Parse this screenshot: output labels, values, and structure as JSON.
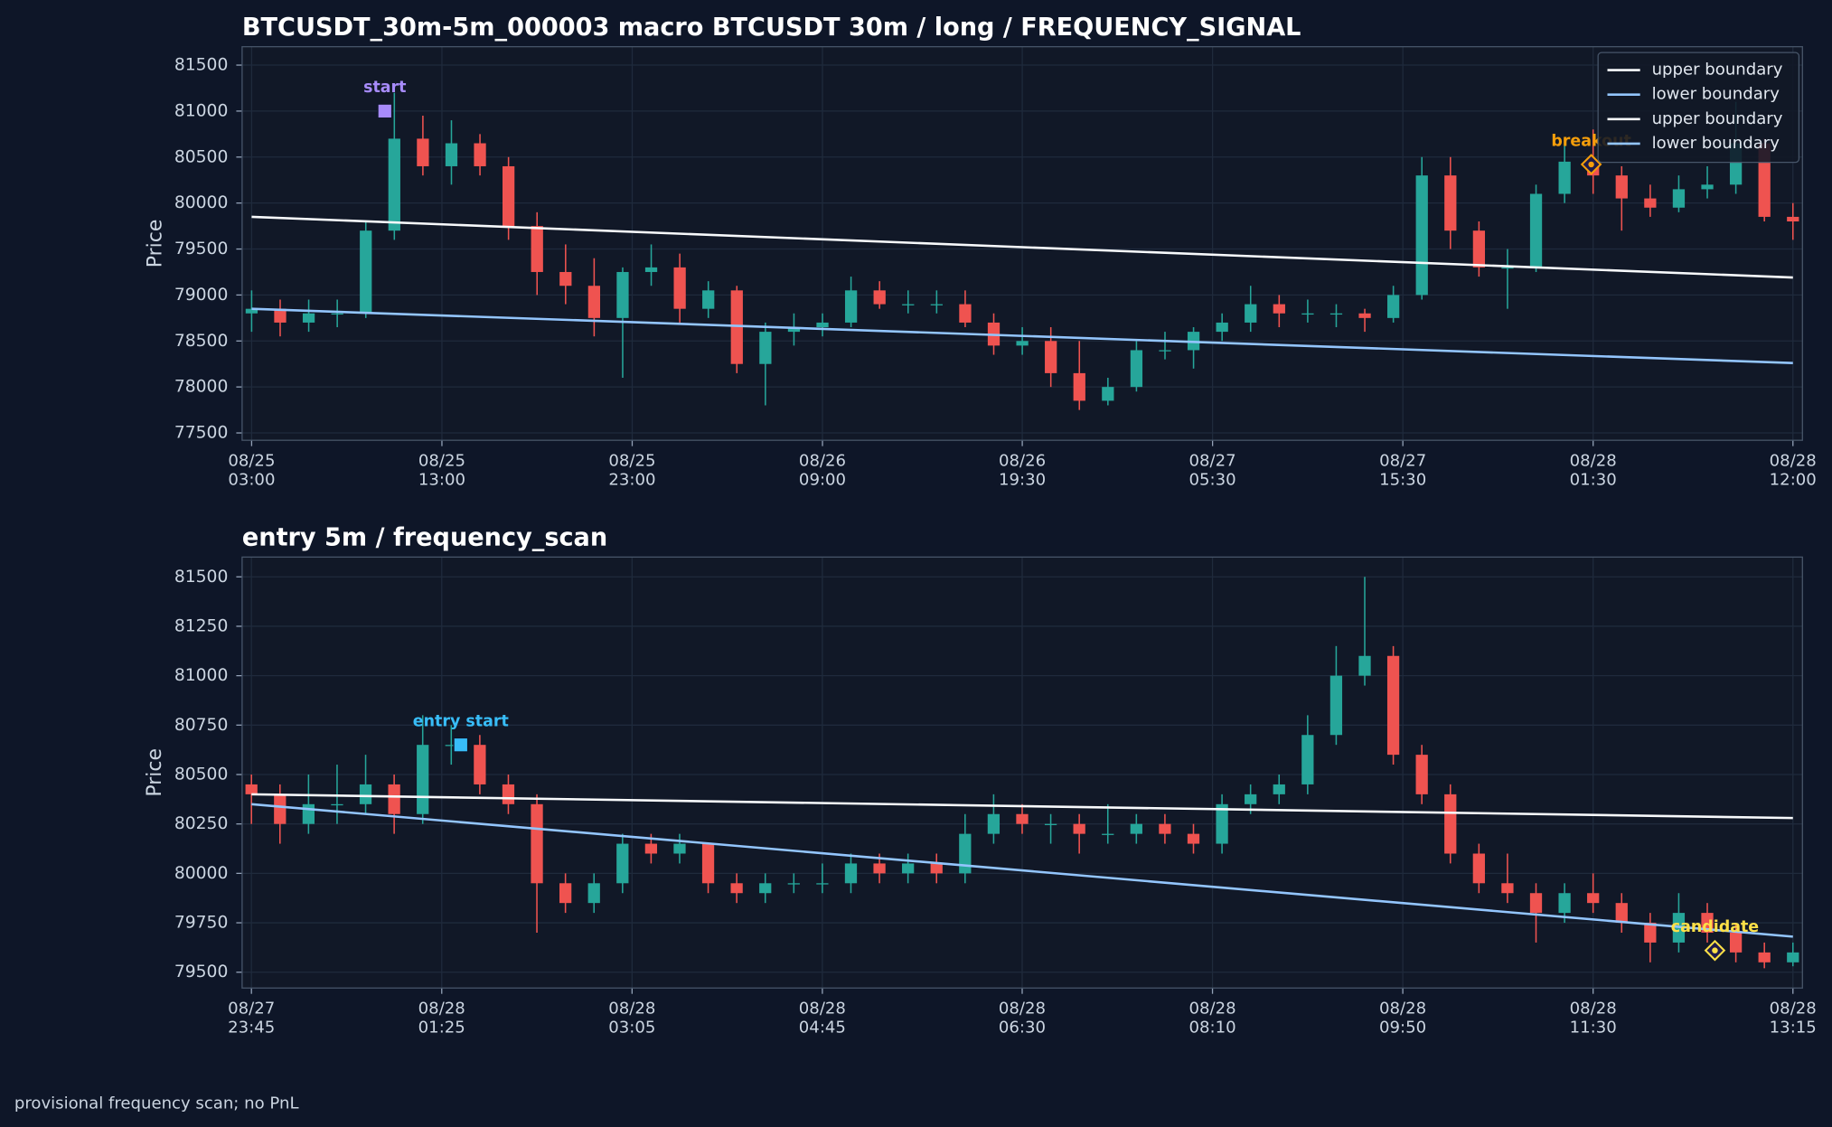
{
  "chart_data": [
    {
      "type": "candlestick",
      "title": "BTCUSDT_30m-5m_000003 macro BTCUSDT 30m / long / FREQUENCY_SIGNAL",
      "ylabel": "Price",
      "x": [
        0,
        1.5,
        3,
        4.5,
        6,
        7.5,
        9,
        10.5,
        12,
        13.5,
        15,
        16.5,
        18,
        19.5,
        21,
        22.5,
        24,
        25.5,
        27,
        28.5,
        30,
        31.5,
        33,
        34.5,
        36,
        37.5,
        39,
        40.5,
        42,
        43.5,
        45,
        46.5,
        48,
        49.5,
        51,
        52.5,
        54,
        55.5,
        57,
        58.5,
        60,
        61.5,
        63,
        64.5,
        66,
        67.5,
        69,
        70.5,
        72,
        73.5,
        75,
        76.5,
        78,
        79.5,
        81
      ],
      "open": [
        78800,
        78850,
        78700,
        78800,
        78800,
        79700,
        80700,
        80400,
        80650,
        80400,
        79750,
        79250,
        79100,
        78750,
        79250,
        79300,
        78850,
        79050,
        78250,
        78600,
        78650,
        78700,
        79050,
        78900,
        78900,
        78900,
        78700,
        78450,
        78500,
        78150,
        77850,
        78000,
        78400,
        78400,
        78600,
        78700,
        78900,
        78800,
        78800,
        78800,
        78750,
        79000,
        80300,
        79700,
        79300,
        79300,
        80100,
        80450,
        80300,
        80050,
        79950,
        80150,
        80200,
        80650,
        79850
      ],
      "high": [
        79050,
        78950,
        78950,
        78950,
        79800,
        81200,
        80950,
        80900,
        80750,
        80500,
        79900,
        79550,
        79400,
        79300,
        79550,
        79450,
        79150,
        79100,
        78700,
        78800,
        78800,
        79200,
        79150,
        79050,
        79050,
        79050,
        78800,
        78650,
        78650,
        78500,
        78100,
        78500,
        78600,
        78650,
        78800,
        79100,
        79000,
        78950,
        78900,
        78850,
        79100,
        80500,
        80500,
        79800,
        79500,
        80200,
        80700,
        80800,
        80400,
        80200,
        80300,
        80400,
        81100,
        80700,
        80000
      ],
      "low": [
        78600,
        78550,
        78600,
        78650,
        78750,
        79600,
        80300,
        80200,
        80300,
        79600,
        79000,
        78900,
        78550,
        78100,
        79100,
        78700,
        78750,
        78150,
        77800,
        78450,
        78550,
        78650,
        78850,
        78800,
        78800,
        78650,
        78350,
        78350,
        78000,
        77750,
        77800,
        77950,
        78300,
        78200,
        78500,
        78600,
        78650,
        78700,
        78650,
        78600,
        78700,
        78950,
        79500,
        79200,
        78850,
        79250,
        80000,
        80100,
        79700,
        79850,
        79900,
        80050,
        80100,
        79800,
        79600
      ],
      "close": [
        78850,
        78700,
        78800,
        78800,
        79700,
        80700,
        80400,
        80650,
        80400,
        79750,
        79250,
        79100,
        78750,
        79250,
        79300,
        78850,
        79050,
        78250,
        78600,
        78650,
        78700,
        79050,
        78900,
        78900,
        78900,
        78700,
        78450,
        78500,
        78150,
        77850,
        78000,
        78400,
        78400,
        78600,
        78700,
        78900,
        78800,
        78800,
        78800,
        78750,
        79000,
        80300,
        79700,
        79300,
        79300,
        80100,
        80450,
        80300,
        80050,
        79950,
        80150,
        80200,
        80650,
        79850,
        79800
      ],
      "up_color": "#26a69a",
      "down_color": "#ef5350",
      "series": [
        {
          "name": "upper boundary",
          "color": "#f8fafc",
          "x": [
            0,
            81
          ],
          "values": [
            79850,
            79190
          ]
        },
        {
          "name": "lower boundary",
          "color": "#93c5fd",
          "x": [
            0,
            81
          ],
          "values": [
            78850,
            78260
          ]
        }
      ],
      "markers": [
        {
          "label": "start",
          "x": 7,
          "y": 81000,
          "color": "#a78bfa",
          "shape": "square"
        },
        {
          "label": "breakout",
          "x": 70.4,
          "y": 80420,
          "color": "#f59e0b",
          "shape": "diamond"
        }
      ],
      "xlim": [
        -0.5,
        81.5
      ],
      "ylim": [
        77420,
        81700
      ],
      "xticks": [
        {
          "value": 0,
          "label": "08/25\n03:00"
        },
        {
          "value": 10,
          "label": "08/25\n13:00"
        },
        {
          "value": 20,
          "label": "08/25\n23:00"
        },
        {
          "value": 30,
          "label": "08/26\n09:00"
        },
        {
          "value": 40.5,
          "label": "08/26\n19:30"
        },
        {
          "value": 50.5,
          "label": "08/27\n05:30"
        },
        {
          "value": 60.5,
          "label": "08/27\n15:30"
        },
        {
          "value": 70.5,
          "label": "08/28\n01:30"
        },
        {
          "value": 81,
          "label": "08/28\n12:00"
        }
      ],
      "yticks": [
        77500,
        78000,
        78500,
        79000,
        79500,
        80000,
        80500,
        81000,
        81500
      ],
      "grid": true,
      "legend": "upper right"
    },
    {
      "type": "candlestick",
      "title": "entry 5m / frequency_scan",
      "ylabel": "Price",
      "x": [
        0,
        15,
        30,
        45,
        60,
        75,
        90,
        105,
        120,
        135,
        150,
        165,
        180,
        195,
        210,
        225,
        240,
        255,
        270,
        285,
        300,
        315,
        330,
        345,
        360,
        375,
        390,
        405,
        420,
        435,
        450,
        465,
        480,
        495,
        510,
        525,
        540,
        555,
        570,
        585,
        600,
        615,
        630,
        645,
        660,
        675,
        690,
        705,
        720,
        735,
        750,
        765,
        780,
        795,
        810
      ],
      "open": [
        80450,
        80400,
        80250,
        80350,
        80350,
        80450,
        80300,
        80650,
        80650,
        80450,
        80350,
        79950,
        79850,
        79950,
        80150,
        80100,
        80150,
        79950,
        79900,
        79950,
        79950,
        79950,
        80050,
        80000,
        80050,
        80000,
        80200,
        80300,
        80250,
        80250,
        80200,
        80200,
        80250,
        80200,
        80150,
        80350,
        80400,
        80450,
        80700,
        81000,
        81100,
        80600,
        80400,
        80100,
        79950,
        79900,
        79800,
        79900,
        79850,
        79750,
        79650,
        79800,
        79700,
        79600,
        79550
      ],
      "high": [
        80500,
        80450,
        80500,
        80550,
        80600,
        80500,
        80800,
        80750,
        80700,
        80500,
        80400,
        80000,
        80000,
        80200,
        80200,
        80200,
        80150,
        80000,
        80000,
        80000,
        80050,
        80100,
        80100,
        80100,
        80100,
        80300,
        80400,
        80350,
        80300,
        80300,
        80350,
        80300,
        80300,
        80250,
        80400,
        80450,
        80500,
        80800,
        81150,
        81500,
        81150,
        80650,
        80450,
        80150,
        80100,
        79950,
        79950,
        80000,
        79900,
        79800,
        79900,
        79850,
        79750,
        79650,
        79650
      ],
      "low": [
        80250,
        80150,
        80200,
        80250,
        80300,
        80200,
        80250,
        80550,
        80400,
        80300,
        79700,
        79800,
        79800,
        79900,
        80050,
        80050,
        79900,
        79850,
        79850,
        79900,
        79900,
        79900,
        79950,
        79950,
        79950,
        79950,
        80150,
        80200,
        80150,
        80100,
        80150,
        80150,
        80150,
        80100,
        80100,
        80300,
        80350,
        80400,
        80650,
        80950,
        80550,
        80350,
        80050,
        79900,
        79850,
        79650,
        79750,
        79800,
        79700,
        79550,
        79600,
        79650,
        79550,
        79520,
        79530
      ],
      "close": [
        80400,
        80250,
        80350,
        80350,
        80450,
        80300,
        80650,
        80650,
        80450,
        80350,
        79950,
        79850,
        79950,
        80150,
        80100,
        80150,
        79950,
        79900,
        79950,
        79950,
        79950,
        80050,
        80000,
        80050,
        80000,
        80200,
        80300,
        80250,
        80250,
        80200,
        80200,
        80250,
        80200,
        80150,
        80350,
        80400,
        80450,
        80700,
        81000,
        81100,
        80600,
        80400,
        80100,
        79950,
        79900,
        79800,
        79900,
        79850,
        79750,
        79650,
        79800,
        79700,
        79600,
        79550,
        79600
      ],
      "up_color": "#26a69a",
      "down_color": "#ef5350",
      "series": [
        {
          "name": "upper boundary",
          "color": "#f8fafc",
          "x": [
            0,
            810
          ],
          "values": [
            80400,
            80280
          ]
        },
        {
          "name": "lower boundary",
          "color": "#93c5fd",
          "x": [
            0,
            810
          ],
          "values": [
            80350,
            79680
          ]
        }
      ],
      "markers": [
        {
          "label": "entry start",
          "x": 110,
          "y": 80650,
          "color": "#38bdf8",
          "shape": "square"
        },
        {
          "label": "candidate",
          "x": 769,
          "y": 79610,
          "color": "#fde047",
          "shape": "diamond"
        }
      ],
      "xlim": [
        -4.9,
        815
      ],
      "ylim": [
        79420,
        81600
      ],
      "xticks": [
        {
          "value": 0,
          "label": "08/27\n23:45"
        },
        {
          "value": 100,
          "label": "08/28\n01:25"
        },
        {
          "value": 200,
          "label": "08/28\n03:05"
        },
        {
          "value": 300,
          "label": "08/28\n04:45"
        },
        {
          "value": 405,
          "label": "08/28\n06:30"
        },
        {
          "value": 505,
          "label": "08/28\n08:10"
        },
        {
          "value": 605,
          "label": "08/28\n09:50"
        },
        {
          "value": 705,
          "label": "08/28\n11:30"
        },
        {
          "value": 810,
          "label": "08/28\n13:15"
        }
      ],
      "yticks": [
        79500,
        79750,
        80000,
        80250,
        80500,
        80750,
        81000,
        81250,
        81500
      ],
      "grid": true
    }
  ],
  "footer": "provisional frequency scan; no PnL"
}
